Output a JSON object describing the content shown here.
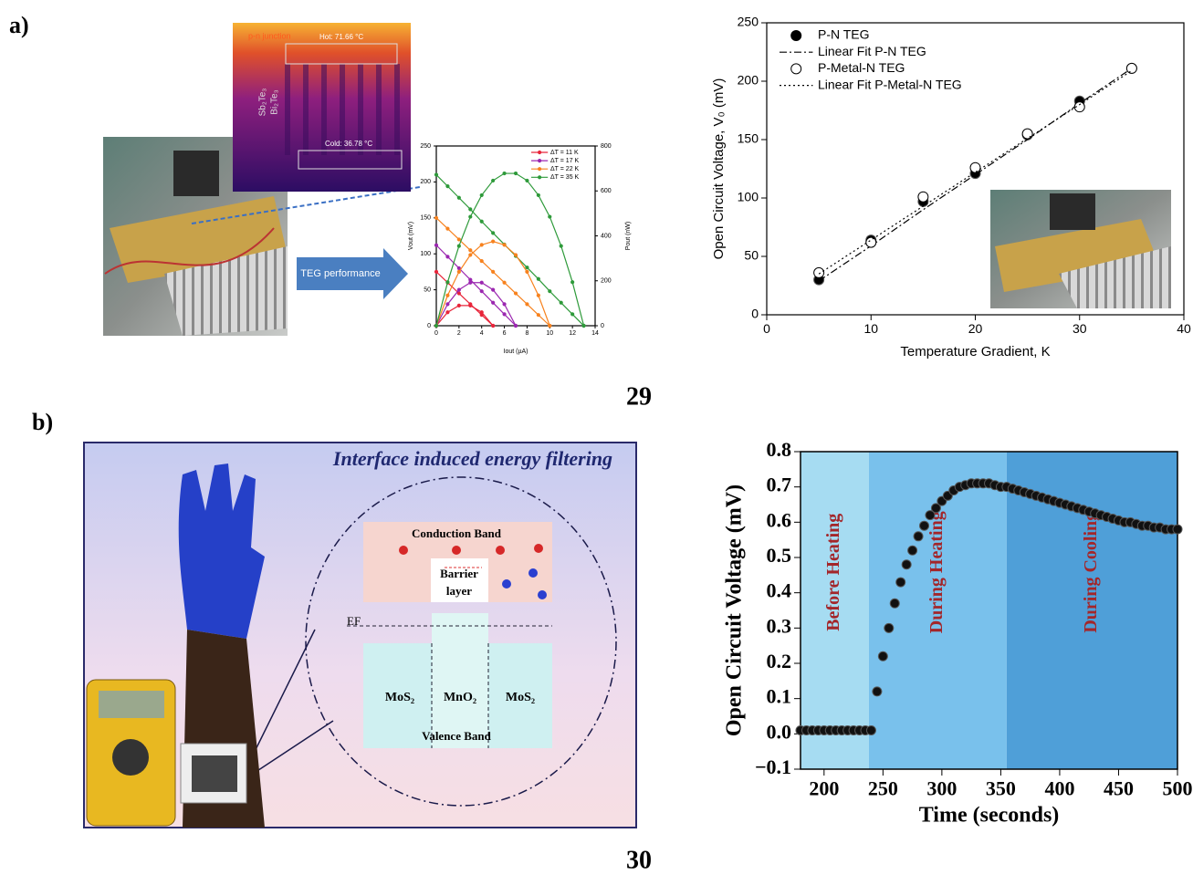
{
  "labels": {
    "a": "a)",
    "b": "b)",
    "ref_a": "29",
    "ref_b": "30"
  },
  "panel_a": {
    "junction": "p-n junction",
    "hot": "Hot: 71.66 °C",
    "cold": "Cold: 36.78 °C",
    "leg_p": "Sb₂Te₃",
    "leg_n": "Bi₂Te₃",
    "arrow": "TEG performance"
  },
  "panel_b": {
    "title": "Interface induced energy filtering",
    "conduction": "Conduction Band",
    "barrier": [
      "Barrier",
      "layer"
    ],
    "fermi": "EF",
    "left": "MoS₂",
    "middle": "MnO₂",
    "right": "MoS₂",
    "valence": "Valence Band"
  },
  "chart_data": [
    {
      "type": "line",
      "xlabel": "Iout (µA)",
      "ylabel": "Vout (mV)",
      "y2label": "Pout (nW)",
      "x": [
        0,
        1,
        2,
        3,
        4,
        5,
        6,
        7,
        8,
        9,
        10,
        11,
        12,
        13
      ],
      "xlim": [
        0,
        14
      ],
      "xticks": [
        0,
        2,
        4,
        6,
        8,
        10,
        12,
        14
      ],
      "ylim": [
        0,
        250
      ],
      "yticks": [
        0,
        50,
        100,
        150,
        200,
        250
      ],
      "y2lim": [
        0,
        800
      ],
      "y2ticks": [
        0,
        200,
        400,
        600,
        800
      ],
      "legend": "upper right",
      "series": [
        {
          "name": "ΔT = 11 K",
          "color": "#e8253a",
          "values": [
            75,
            60,
            45,
            30,
            15,
            0,
            null,
            null,
            null,
            null,
            null,
            null,
            null,
            null
          ]
        },
        {
          "name": "ΔT = 17 K",
          "color": "#9b27b0",
          "values": [
            112,
            96,
            80,
            64,
            48,
            32,
            16,
            0,
            null,
            null,
            null,
            null,
            null,
            null
          ]
        },
        {
          "name": "ΔT = 22 K",
          "color": "#f7821e",
          "values": [
            150,
            135,
            120,
            105,
            90,
            75,
            60,
            45,
            30,
            15,
            0,
            null,
            null,
            null
          ]
        },
        {
          "name": "ΔT = 35 K",
          "color": "#2e9a3a",
          "values": [
            210,
            194,
            178,
            162,
            145,
            129,
            113,
            97,
            81,
            65,
            48,
            32,
            16,
            0
          ]
        },
        {
          "color": "#e8253a",
          "axis": "y2",
          "values": [
            0,
            60,
            90,
            90,
            60,
            0,
            null,
            null,
            null,
            null,
            null,
            null,
            null,
            null
          ]
        },
        {
          "color": "#9b27b0",
          "axis": "y2",
          "values": [
            0,
            96,
            160,
            192,
            192,
            160,
            96,
            0,
            null,
            null,
            null,
            null,
            null,
            null
          ]
        },
        {
          "color": "#f7821e",
          "axis": "y2",
          "values": [
            0,
            135,
            240,
            315,
            360,
            375,
            360,
            315,
            240,
            135,
            0,
            null,
            null,
            null
          ]
        },
        {
          "color": "#2e9a3a",
          "axis": "y2",
          "values": [
            0,
            194,
            355,
            485,
            581,
            646,
            678,
            678,
            646,
            581,
            485,
            355,
            194,
            0
          ]
        }
      ]
    },
    {
      "type": "scatter",
      "xlabel": "Temperature Gradient, K",
      "ylabel": "Open Circuit Voltage, V₀ (mV)",
      "x": [
        5,
        10,
        15,
        20,
        25,
        30,
        35
      ],
      "xlim": [
        0,
        40
      ],
      "xticks": [
        0,
        10,
        20,
        30,
        40
      ],
      "ylim": [
        0,
        250
      ],
      "yticks": [
        0,
        50,
        100,
        150,
        200,
        250
      ],
      "legend": "upper left",
      "series": [
        {
          "name": "P-N TEG",
          "color": "#000000",
          "mode": "markers",
          "marker": "filled",
          "values": [
            30,
            64,
            97,
            121,
            154,
            183,
            211
          ]
        },
        {
          "name": "Linear Fit P-N TEG",
          "color": "#000000",
          "mode": "line",
          "dash": "8 3 2 3",
          "values": [
            29,
            59,
            90,
            120,
            150,
            181,
            211
          ]
        },
        {
          "name": "P-Metal-N TEG",
          "color": "#000000",
          "mode": "markers",
          "marker": "open",
          "values": [
            36,
            62,
            101,
            126,
            155,
            178,
            211
          ]
        },
        {
          "name": "Linear Fit P-Metal-N TEG",
          "color": "#000000",
          "mode": "line",
          "dash": "2 3",
          "values": [
            35,
            64,
            93,
            122,
            151,
            180,
            209
          ]
        }
      ]
    },
    {
      "type": "scatter",
      "xlabel": "Time (seconds)",
      "ylabel": "Open Circuit Voltage (mV)",
      "x": [
        180,
        185,
        190,
        195,
        200,
        205,
        210,
        215,
        220,
        225,
        230,
        235,
        240,
        245,
        250,
        255,
        260,
        265,
        270,
        275,
        280,
        285,
        290,
        295,
        300,
        305,
        310,
        315,
        320,
        325,
        330,
        335,
        340,
        345,
        350,
        355,
        360,
        365,
        370,
        375,
        380,
        385,
        390,
        395,
        400,
        405,
        410,
        415,
        420,
        425,
        430,
        435,
        440,
        445,
        450,
        455,
        460,
        465,
        470,
        475,
        480,
        485,
        490,
        495,
        500
      ],
      "xlim": [
        180,
        500
      ],
      "xticks": [
        200,
        250,
        300,
        350,
        400,
        450,
        500
      ],
      "ylim": [
        -0.1,
        0.8
      ],
      "yticks": [
        {
          "value": -0.1,
          "label": "−0.1"
        },
        {
          "value": 0,
          "label": "0.0"
        },
        0.1,
        0.2,
        0.3,
        0.4,
        0.5,
        0.6,
        0.7,
        0.8
      ],
      "regions": [
        {
          "label": "Before Heating",
          "start": 180,
          "end": 238,
          "color": "#a6dcf2"
        },
        {
          "label": "During Heating",
          "start": 238,
          "end": 355,
          "color": "#79c1ec"
        },
        {
          "label": "During Cooling",
          "start": 355,
          "end": 500,
          "color": "#4f9fd8"
        }
      ],
      "series": [
        {
          "color": "#111111",
          "mode": "markers",
          "marker": "filled",
          "values": [
            0.01,
            0.01,
            0.01,
            0.01,
            0.01,
            0.01,
            0.01,
            0.01,
            0.01,
            0.01,
            0.01,
            0.01,
            0.01,
            0.12,
            0.22,
            0.3,
            0.37,
            0.43,
            0.48,
            0.52,
            0.56,
            0.59,
            0.62,
            0.64,
            0.66,
            0.675,
            0.69,
            0.7,
            0.705,
            0.71,
            0.71,
            0.71,
            0.71,
            0.705,
            0.7,
            0.7,
            0.695,
            0.69,
            0.685,
            0.68,
            0.675,
            0.67,
            0.665,
            0.66,
            0.655,
            0.65,
            0.645,
            0.64,
            0.635,
            0.63,
            0.625,
            0.62,
            0.615,
            0.61,
            0.605,
            0.6,
            0.6,
            0.595,
            0.59,
            0.59,
            0.585,
            0.585,
            0.58,
            0.58,
            0.58
          ]
        }
      ]
    }
  ]
}
